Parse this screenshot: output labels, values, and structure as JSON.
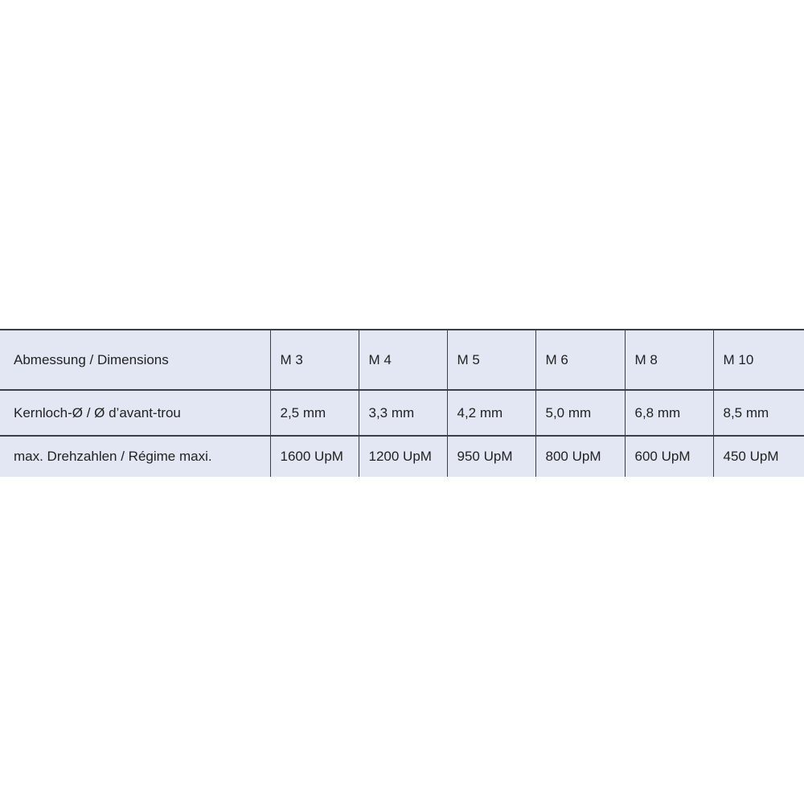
{
  "table": {
    "rows": [
      {
        "label": "Abmessung / Dimensions",
        "cells": [
          "M 3",
          "M 4",
          "M 5",
          "M 6",
          "M 8",
          "M 10"
        ]
      },
      {
        "label": "Kernloch-Ø / Ø d’avant-trou",
        "cells": [
          "2,5 mm",
          "3,3 mm",
          "4,2 mm",
          "5,0 mm",
          "6,8 mm",
          "8,5 mm"
        ]
      },
      {
        "label": "max. Drehzahlen / Régime maxi.",
        "cells": [
          "1600 UpM",
          "1200 UpM",
          "950 UpM",
          "800 UpM",
          "600 UpM",
          "450 UpM"
        ]
      }
    ]
  },
  "colors": {
    "background": "#e2e7f3",
    "border": "#3a3f4a",
    "text": "#222222"
  }
}
